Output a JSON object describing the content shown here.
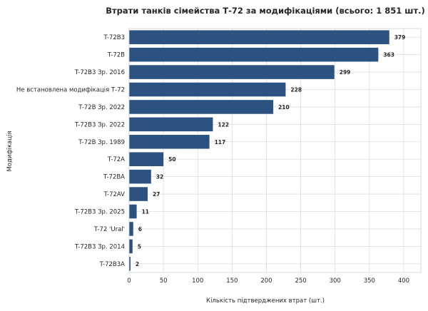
{
  "chart_data": {
    "type": "bar",
    "orientation": "horizontal",
    "title": "Втрати танків сімейства Т-72 за модифікаціями (всього: 1 851 шт.)",
    "xlabel": "Кількість підтверджених втрат (шт.)",
    "ylabel": "Модифікація",
    "xlim": [
      0,
      425
    ],
    "xticks": [
      0,
      50,
      100,
      150,
      200,
      250,
      300,
      350,
      400
    ],
    "grid": true,
    "legend": "none",
    "bar_color": "#2c5282",
    "categories": [
      "T-72B3",
      "T-72B",
      "T-72B3 Зр. 2016",
      "Не встановлена модифікація Т-72",
      "T-72B Зр. 2022",
      "T-72B3 Зр. 2022",
      "T-72B Зр. 1989",
      "T-72A",
      "T-72BA",
      "T-72AV",
      "T-72B3 Зр. 2025",
      "T-72 'Ural'",
      "T-72B3 Зр. 2014",
      "T-72B3A"
    ],
    "values": [
      379,
      363,
      299,
      228,
      210,
      122,
      117,
      50,
      32,
      27,
      11,
      6,
      5,
      2
    ],
    "data_labels": [
      "379",
      "363",
      "299",
      "228",
      "210",
      "122",
      "117",
      "50",
      "32",
      "27",
      "11",
      "6",
      "5",
      "2"
    ]
  }
}
